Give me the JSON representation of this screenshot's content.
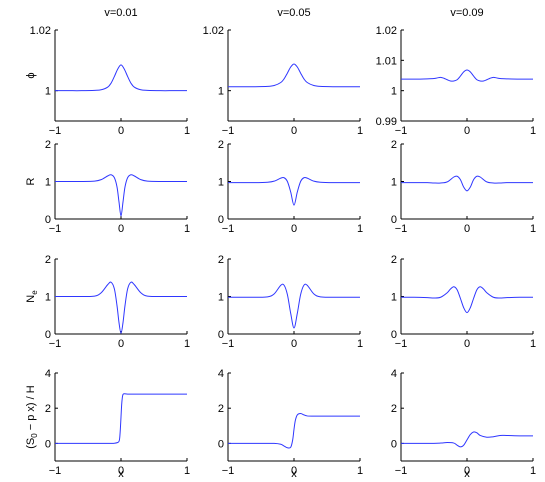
{
  "chart_data": {
    "type": "line",
    "columns": [
      "v=0.01",
      "v=0.05",
      "v=0.09"
    ],
    "rows": [
      {
        "ylabel": "ϕ",
        "ylim_by_column": [
          [
            0.99,
            1.02
          ],
          [
            0.99,
            1.02
          ],
          [
            0.99,
            1.02
          ]
        ],
        "yticks_by_column": [
          [
            1,
            1.02
          ],
          [
            1,
            1.02
          ],
          [
            0.99,
            1,
            1.01,
            1.02
          ]
        ],
        "ytick_labels_by_column": [
          [
            "1",
            "1.02"
          ],
          [
            "1",
            "1.02"
          ],
          [
            "0.99",
            "1",
            "1.01",
            "1.02"
          ]
        ]
      },
      {
        "ylabel": "R",
        "ylim_by_column": [
          [
            0,
            2
          ],
          [
            0,
            2
          ],
          [
            0,
            2
          ]
        ],
        "yticks_by_column": [
          [
            0,
            1,
            2
          ],
          [
            0,
            1,
            2
          ],
          [
            0,
            1,
            2
          ]
        ],
        "ytick_labels_by_column": [
          [
            "0",
            "1",
            "2"
          ],
          [
            "0",
            "1",
            "2"
          ],
          [
            "0",
            "1",
            "2"
          ]
        ]
      },
      {
        "ylabel": "N",
        "ylabel_sub": "e",
        "ylim_by_column": [
          [
            0,
            2
          ],
          [
            0,
            2
          ],
          [
            0,
            2
          ]
        ],
        "yticks_by_column": [
          [
            0,
            1,
            2
          ],
          [
            0,
            1,
            2
          ],
          [
            0,
            1,
            2
          ]
        ],
        "ytick_labels_by_column": [
          [
            "0",
            "1",
            "2"
          ],
          [
            "0",
            "1",
            "2"
          ],
          [
            "0",
            "1",
            "2"
          ]
        ]
      },
      {
        "ylabel": "(S",
        "ylabel_sub": "0",
        "ylabel_tail": " − p x) / H",
        "ylim_by_column": [
          [
            -1,
            4
          ],
          [
            -1,
            4
          ],
          [
            -1,
            4
          ]
        ],
        "yticks_by_column": [
          [
            0,
            2,
            4
          ],
          [
            0,
            2,
            4
          ],
          [
            0,
            2,
            4
          ]
        ],
        "ytick_labels_by_column": [
          [
            "0",
            "2",
            "4"
          ],
          [
            "0",
            "2",
            "4"
          ],
          [
            "0",
            "2",
            "4"
          ]
        ]
      }
    ],
    "xlabel": "x",
    "xlim": [
      -1,
      1
    ],
    "xticks": [
      -1,
      0,
      1
    ],
    "xtick_labels": [
      "−1",
      "0",
      "1"
    ],
    "series_color": "#2f37ff",
    "panels": [
      {
        "row": 0,
        "col": 0,
        "x": [
          -1,
          -0.8,
          -0.6,
          -0.4,
          -0.3,
          -0.2,
          -0.15,
          -0.1,
          -0.05,
          0,
          0.05,
          0.1,
          0.15,
          0.2,
          0.3,
          0.4,
          0.6,
          0.8,
          1
        ],
        "y": [
          1,
          1,
          1,
          1.0001,
          1.0003,
          1.0012,
          1.0025,
          1.0047,
          1.0071,
          1.0085,
          1.0071,
          1.0047,
          1.0025,
          1.0012,
          1.0003,
          1.0001,
          1,
          1,
          1
        ]
      },
      {
        "row": 0,
        "col": 1,
        "x": [
          -1,
          -0.8,
          -0.6,
          -0.4,
          -0.3,
          -0.2,
          -0.15,
          -0.1,
          -0.05,
          0,
          0.05,
          0.1,
          0.15,
          0.2,
          0.3,
          0.4,
          0.6,
          0.8,
          1
        ],
        "y": [
          1.0013,
          1.0013,
          1.0013,
          1.0014,
          1.0017,
          1.0027,
          1.0039,
          1.0058,
          1.0078,
          1.0088,
          1.0078,
          1.0058,
          1.0039,
          1.0027,
          1.0017,
          1.0014,
          1.0013,
          1.0013,
          1.0013
        ]
      },
      {
        "row": 0,
        "col": 2,
        "x": [
          -1,
          -0.8,
          -0.6,
          -0.5,
          -0.45,
          -0.4,
          -0.35,
          -0.3,
          -0.25,
          -0.2,
          -0.15,
          -0.1,
          -0.05,
          0,
          0.05,
          0.1,
          0.15,
          0.2,
          0.25,
          0.3,
          0.35,
          0.4,
          0.45,
          0.5,
          0.6,
          0.8,
          1
        ],
        "y": [
          1.0038,
          1.0038,
          1.0039,
          1.004,
          1.0042,
          1.0044,
          1.0041,
          1.0036,
          1.0032,
          1.0032,
          1.0036,
          1.0048,
          1.0062,
          1.0068,
          1.0062,
          1.0048,
          1.0036,
          1.0032,
          1.0032,
          1.0036,
          1.0041,
          1.0044,
          1.0042,
          1.004,
          1.0039,
          1.0038,
          1.0038
        ]
      },
      {
        "row": 1,
        "col": 0,
        "x": [
          -1,
          -0.6,
          -0.4,
          -0.3,
          -0.2,
          -0.15,
          -0.1,
          -0.06,
          -0.03,
          0,
          0.03,
          0.06,
          0.1,
          0.15,
          0.2,
          0.3,
          0.4,
          0.6,
          1
        ],
        "y": [
          1,
          1,
          1.01,
          1.05,
          1.15,
          1.18,
          1.1,
          0.85,
          0.45,
          0.08,
          0.45,
          0.85,
          1.1,
          1.18,
          1.15,
          1.05,
          1.01,
          1,
          1
        ]
      },
      {
        "row": 1,
        "col": 1,
        "x": [
          -1,
          -0.6,
          -0.4,
          -0.3,
          -0.2,
          -0.15,
          -0.1,
          -0.05,
          0,
          0.05,
          0.1,
          0.15,
          0.2,
          0.3,
          0.4,
          0.6,
          1
        ],
        "y": [
          0.97,
          0.97,
          0.98,
          1.01,
          1.09,
          1.1,
          1.0,
          0.72,
          0.37,
          0.72,
          1.0,
          1.1,
          1.09,
          1.01,
          0.98,
          0.97,
          0.97
        ]
      },
      {
        "row": 1,
        "col": 2,
        "x": [
          -1,
          -0.8,
          -0.6,
          -0.5,
          -0.4,
          -0.3,
          -0.2,
          -0.15,
          -0.1,
          -0.05,
          0,
          0.05,
          0.1,
          0.15,
          0.2,
          0.3,
          0.4,
          0.5,
          0.6,
          0.8,
          1
        ],
        "y": [
          0.97,
          0.97,
          0.97,
          0.96,
          0.96,
          0.99,
          1.12,
          1.14,
          1.05,
          0.85,
          0.75,
          0.85,
          1.05,
          1.14,
          1.12,
          0.99,
          0.96,
          0.96,
          0.97,
          0.97,
          0.97
        ]
      },
      {
        "row": 2,
        "col": 0,
        "x": [
          -1,
          -0.6,
          -0.4,
          -0.3,
          -0.2,
          -0.15,
          -0.1,
          -0.06,
          -0.03,
          0,
          0.03,
          0.06,
          0.1,
          0.15,
          0.2,
          0.3,
          0.4,
          0.6,
          1
        ],
        "y": [
          1,
          1,
          1.01,
          1.1,
          1.32,
          1.38,
          1.2,
          0.75,
          0.3,
          0.02,
          0.3,
          0.75,
          1.2,
          1.38,
          1.32,
          1.1,
          1.01,
          1,
          1
        ]
      },
      {
        "row": 2,
        "col": 1,
        "x": [
          -1,
          -0.6,
          -0.4,
          -0.3,
          -0.2,
          -0.15,
          -0.1,
          -0.05,
          0,
          0.05,
          0.1,
          0.15,
          0.2,
          0.3,
          0.4,
          0.6,
          1
        ],
        "y": [
          0.98,
          0.98,
          0.99,
          1.07,
          1.3,
          1.3,
          1.05,
          0.55,
          0.16,
          0.55,
          1.05,
          1.3,
          1.3,
          1.07,
          0.99,
          0.98,
          0.98
        ]
      },
      {
        "row": 2,
        "col": 2,
        "x": [
          -1,
          -0.8,
          -0.6,
          -0.5,
          -0.4,
          -0.3,
          -0.25,
          -0.2,
          -0.15,
          -0.1,
          -0.05,
          0,
          0.05,
          0.1,
          0.15,
          0.2,
          0.25,
          0.3,
          0.4,
          0.5,
          0.6,
          0.8,
          1
        ],
        "y": [
          0.98,
          0.98,
          0.97,
          0.96,
          0.98,
          1.1,
          1.2,
          1.26,
          1.18,
          0.95,
          0.7,
          0.57,
          0.7,
          0.95,
          1.18,
          1.26,
          1.2,
          1.1,
          0.98,
          0.96,
          0.97,
          0.98,
          0.98
        ]
      },
      {
        "row": 3,
        "col": 0,
        "x": [
          -1,
          -0.5,
          -0.2,
          -0.1,
          -0.05,
          -0.03,
          -0.02,
          -0.01,
          0,
          0.01,
          0.02,
          0.03,
          0.05,
          0.1,
          0.2,
          0.5,
          1
        ],
        "y": [
          0,
          0,
          0,
          0.01,
          0.05,
          0.12,
          0.3,
          0.8,
          1.5,
          2.2,
          2.6,
          2.78,
          2.82,
          2.8,
          2.8,
          2.8,
          2.8
        ]
      },
      {
        "row": 3,
        "col": 1,
        "x": [
          -1,
          -0.5,
          -0.3,
          -0.2,
          -0.15,
          -0.1,
          -0.05,
          -0.02,
          0,
          0.02,
          0.05,
          0.1,
          0.15,
          0.2,
          0.3,
          0.5,
          1
        ],
        "y": [
          0,
          0,
          0,
          -0.05,
          -0.15,
          -0.25,
          -0.22,
          0.2,
          0.8,
          1.3,
          1.62,
          1.7,
          1.62,
          1.56,
          1.55,
          1.55,
          1.55
        ]
      },
      {
        "row": 3,
        "col": 2,
        "x": [
          -1,
          -0.6,
          -0.4,
          -0.3,
          -0.2,
          -0.15,
          -0.1,
          -0.05,
          0,
          0.05,
          0.1,
          0.15,
          0.2,
          0.3,
          0.4,
          0.5,
          0.6,
          0.8,
          1
        ],
        "y": [
          0,
          0,
          0.02,
          0.05,
          0.02,
          -0.1,
          -0.2,
          -0.1,
          0.2,
          0.5,
          0.65,
          0.6,
          0.45,
          0.35,
          0.38,
          0.45,
          0.45,
          0.43,
          0.43
        ]
      }
    ]
  }
}
